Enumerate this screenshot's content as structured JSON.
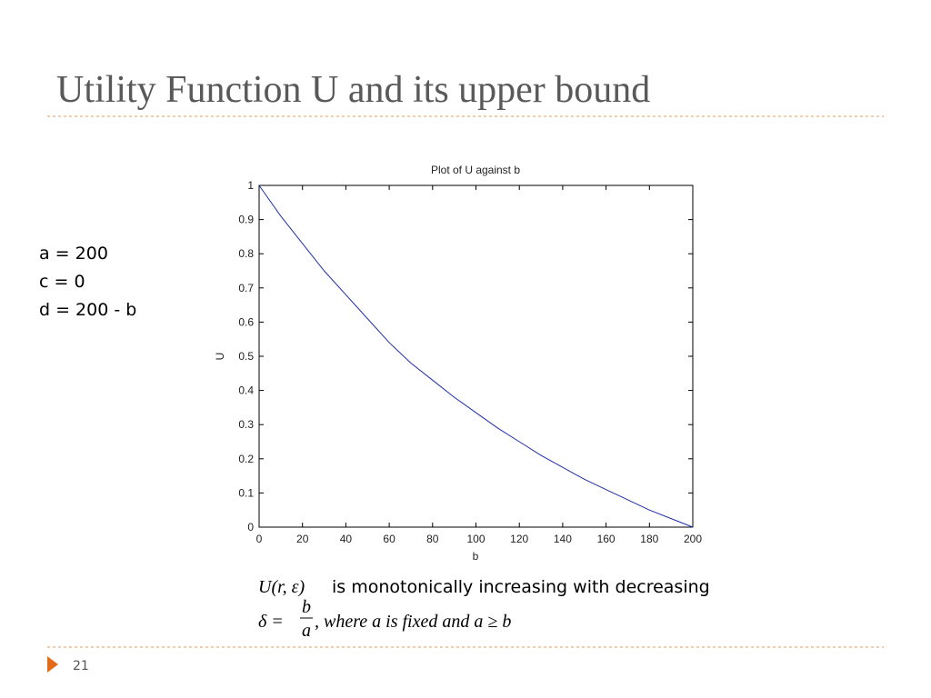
{
  "slide": {
    "title": "Utility Function U and its upper bound",
    "params": [
      "a = 200",
      "c = 0",
      "d = 200 - b"
    ],
    "caption": {
      "line1_math": "U(r, ε)",
      "line1_text": "is monotonically increasing with decreasing",
      "line2_lhs": "δ =",
      "fraction_numerator": "b",
      "fraction_denominator": "a",
      "line2_rest": ", where a is fixed and a ≥ b"
    },
    "page_number": "21"
  },
  "chart_data": {
    "type": "line",
    "title": "Plot of U against b",
    "x_label": "b",
    "y_label": "U",
    "x": [
      0,
      10,
      20,
      30,
      40,
      50,
      60,
      70,
      80,
      90,
      100,
      110,
      120,
      130,
      140,
      150,
      160,
      170,
      180,
      190,
      200
    ],
    "series": [
      {
        "name": "U",
        "color": "#1f2fa8",
        "values": [
          1,
          0.91,
          0.83,
          0.75,
          0.68,
          0.61,
          0.54,
          0.48,
          0.43,
          0.38,
          0.335,
          0.29,
          0.25,
          0.21,
          0.175,
          0.14,
          0.11,
          0.08,
          0.05,
          0.025,
          0
        ]
      }
    ],
    "xlim": [
      0,
      200
    ],
    "ylim": [
      0,
      1
    ],
    "xticks": [
      0,
      20,
      40,
      60,
      80,
      100,
      120,
      140,
      160,
      180,
      200
    ],
    "yticks": [
      0,
      0.1,
      0.2,
      0.3,
      0.4,
      0.5,
      0.6,
      0.7,
      0.8,
      0.9,
      1
    ],
    "grid": false
  }
}
